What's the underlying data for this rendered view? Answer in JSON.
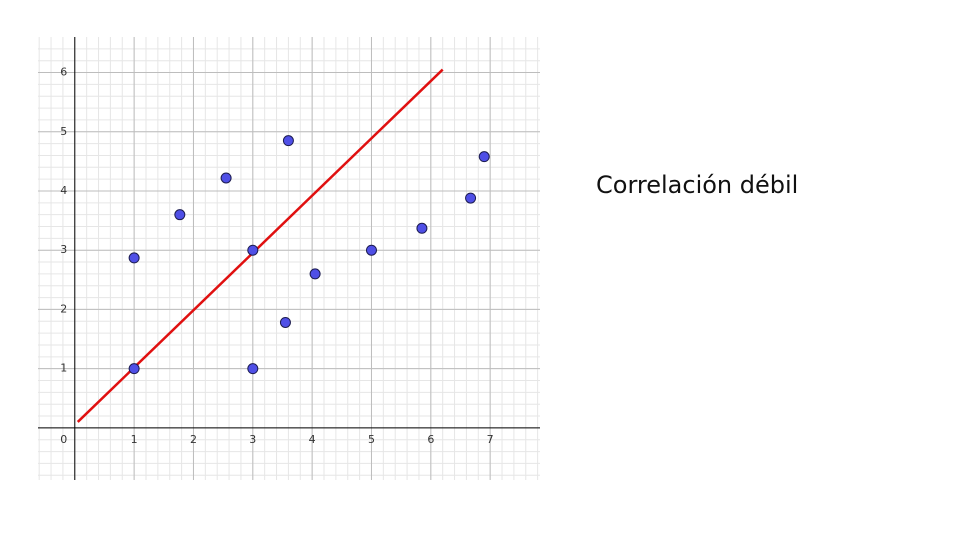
{
  "chart_data": {
    "type": "scatter",
    "annotation": "Correlación débil",
    "series": [
      {
        "color": "#4f4fe6",
        "x": [
          1,
          1.77,
          2.55,
          3.6,
          3,
          1,
          3,
          3.55,
          4.05,
          5,
          5.85,
          6.67,
          6.9
        ],
        "values": [
          2.87,
          3.6,
          4.22,
          4.85,
          3,
          1,
          1,
          1.78,
          2.6,
          3,
          3.37,
          3.88,
          4.58
        ]
      }
    ],
    "line": {
      "color": "#e01010",
      "x": [
        0.05,
        6.2
      ],
      "values": [
        0.1,
        6.05
      ]
    },
    "xlim": [
      -0.62,
      7.84
    ],
    "ylim": [
      -0.88,
      6.6
    ],
    "xticks": [
      0,
      1,
      2,
      3,
      4,
      5,
      6,
      7
    ],
    "yticks": [
      1,
      2,
      3,
      4,
      5,
      6
    ],
    "grid": true
  }
}
